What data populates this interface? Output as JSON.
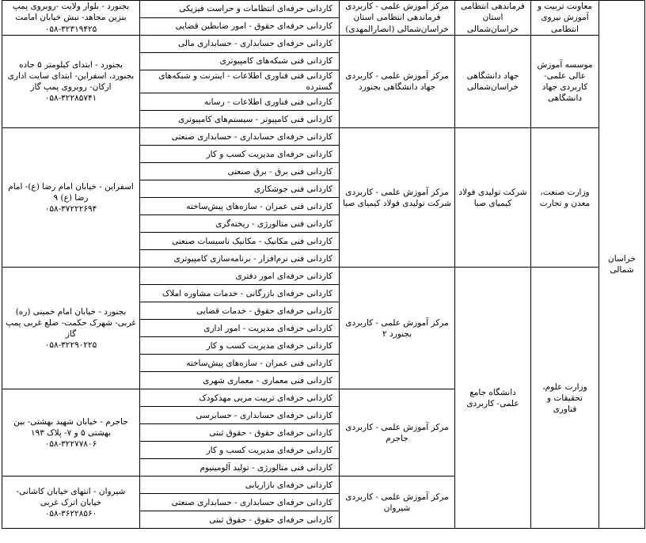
{
  "table": {
    "province": "خراسان شمالی",
    "ministries": [
      {
        "name": "معاونت تربیت و آموزش نیروی انتظامی",
        "organizations": [
          {
            "name": "فرماندهی انتظامی استان خراسان‌شمالی",
            "centers": [
              {
                "name": "مرکز آموزش علمی - کاربردی فرماندهی انتظامی استان خراسان‌شمالی (انصارالمهدی)",
                "address": "بجنورد - بلوار ولایت -روبروی پمپ بنزین مجاهد- نبش خیابان امامت",
                "phone": "۰۵۸-۳۲۳۱۹۴۲۵",
                "programs": [
                  "کاردانی حرفه‌ای انتظامات و حراست فیزیکی",
                  "کاردانی حرفه‌ای حقوق - امور ضابطین قضایی"
                ]
              }
            ]
          }
        ]
      },
      {
        "name": "موسسه آموزش عالی علمی- کاربردی جهاد دانشگاهی",
        "organizations": [
          {
            "name": "جهاد دانشگاهی خراسان‌شمالی",
            "centers": [
              {
                "name": "مرکز آموزش علمی - کاربردی جهاد دانشگاهی بجنورد",
                "address": "بجنورد - ابتدای کیلومتر ۵ جاده بجنورد، اسفراین- ابتدای سایت اداری ارکان- روبروی پمپ گاز",
                "phone": "۰۵۸-۳۲۲۸۵۷۴۱",
                "programs": [
                  "کاردانی حرفه‌ای حسابداری - حسابداری مالی",
                  "کاردانی فنی شبکه‌های کامپیوتری",
                  "کاردانی فنی فناوری اطلاعات - اینترنت و شبکه‌های گسترده",
                  "کاردانی فنی فناوری اطلاعات - رسانه",
                  "کاردانی فنی کامپیوتر - سیستم‌های کامپیوتری"
                ]
              }
            ]
          }
        ]
      },
      {
        "name": "وزارت صنعت، معدن و تجارت",
        "organizations": [
          {
            "name": "شرکت تولیدی فولاد کیمیای صبا",
            "centers": [
              {
                "name": "مرکز آموزش علمی - کاربردی شرکت تولیدی فولاد کیمیای صبا",
                "address": "اسفراین - خیابان امام رضا (ع)- امام رضا (ع) ۹",
                "phone": "۰۵۸-۳۷۲۲۲۶۹۴",
                "programs": [
                  "کاردانی حرفه‌ای حسابداری - حسابداری صنعتی",
                  "کاردانی حرفه‌ای مدیریت کسب و کار",
                  "کاردانی فنی برق - برق صنعتی",
                  "کاردانی فنی جوشکاری",
                  "کاردانی فنی عمران - سازه‌های پیش‌ساخته",
                  "کاردانی فنی متالورژی - ریخته‌گری",
                  "کاردانی فنی مکانیک - مکانیک تاسیسات صنعتی",
                  "کاردانی فنی نرم‌افزار - برنامه‌سازی کامپیوتری"
                ]
              }
            ]
          }
        ]
      },
      {
        "name": "وزارت علوم، تحقیقات و فناوری",
        "organizations": [
          {
            "name": "دانشگاه جامع علمی- کاربردی",
            "centers": [
              {
                "name": "مرکز آموزش علمی - کاربردی بجنورد ۲",
                "address": "بجنورد - خیابان امام خمینی (ره) غربی- شهرک حکمت- ضلع غربی پمپ گاز",
                "phone": "۰۵۸-۳۲۲۹۰۲۲۵",
                "programs": [
                  "کاردانی حرفه‌ای امور دفتری",
                  "کاردانی حرفه‌ای بازرگانی - خدمات مشاوره املاک",
                  "کاردانی حرفه‌ای حقوق - خدمات قضایی",
                  "کاردانی حرفه‌ای مدیریت - امور اداری",
                  "کاردانی حرفه‌ای مدیریت کسب و کار",
                  "کاردانی فنی عمران - سازه‌های پیش‌ساخته",
                  "کاردانی فنی معماری - معماری شهری"
                ]
              },
              {
                "name": "مرکز آموزش علمی - کاربردی جاجرم",
                "address": "جاجرم - خیابان شهید بهشتی- بین بهشتی ۵ و ۷- پلاک ۱۹۳",
                "phone": "۰۵۸-۳۲۲۷۷۸۰۶",
                "programs": [
                  "کاردانی حرفه‌ای تربیت مربی مهدکودک",
                  "کاردانی حرفه‌ای حسابداری - حسابرسی",
                  "کاردانی حرفه‌ای حقوق - حقوق ثبتی",
                  "کاردانی حرفه‌ای مدیریت کسب و کار",
                  "کاردانی فنی متالورژی - تولید آلومینیوم"
                ]
              },
              {
                "name": "مرکز آموزش علمی - کاربردی شیروان",
                "address": "شیروان - انتهای خیابان کاشانی- خیابان اترک غربی",
                "phone": "۰۵۸-۳۶۲۲۸۵۶۰",
                "programs": [
                  "کاردانی حرفه‌ای بازاریابی",
                  "کاردانی حرفه‌ای حسابداری - حسابداری صنعتی",
                  "کاردانی حرفه‌ای حقوق - حقوق ثبتی"
                ]
              }
            ]
          }
        ]
      }
    ]
  }
}
